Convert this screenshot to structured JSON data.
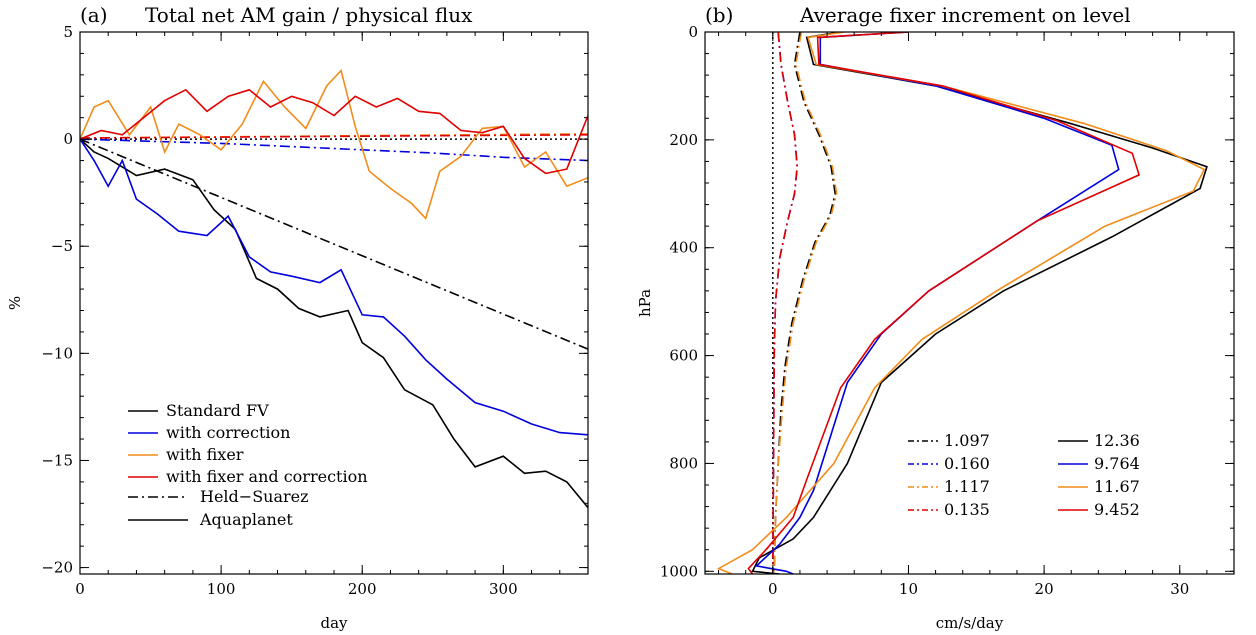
{
  "chart_data": [
    {
      "type": "line",
      "panel_label": "(a)",
      "title": "Total net AM gain / physical flux",
      "xlabel": "day",
      "ylabel": "%",
      "xlim": [
        0,
        360
      ],
      "ylim": [
        -20.3,
        5
      ],
      "xticks": [
        0,
        100,
        200,
        300
      ],
      "yticks": [
        5,
        0,
        -5,
        -10,
        -15,
        -20
      ],
      "xtick_labels": [
        "0",
        "100",
        "200",
        "300"
      ],
      "ytick_labels": [
        "5",
        "0",
        "−5",
        "−10",
        "−15",
        "−20"
      ],
      "zero_reference": "dotted",
      "legend_color": {
        "title": "",
        "placement": "bottom-left",
        "entries": [
          {
            "label": "Standard FV",
            "color": "#000000"
          },
          {
            "label": "with correction",
            "color": "#0000dd"
          },
          {
            "label": "with fixer",
            "color": "#f28c1a"
          },
          {
            "label": "with fixer and correction",
            "color": "#e00000"
          }
        ]
      },
      "legend_style": {
        "entries": [
          {
            "label": "Held−Suarez",
            "style": "dash-dot"
          },
          {
            "label": "Aquaplanet",
            "style": "solid"
          }
        ]
      },
      "series": [
        {
          "color": "#000000",
          "style": "dash-dot",
          "x": [
            0,
            360
          ],
          "y": [
            0,
            -9.8
          ]
        },
        {
          "color": "#0000dd",
          "style": "dash-dot",
          "x": [
            0,
            50,
            100,
            150,
            200,
            250,
            300,
            360
          ],
          "y": [
            0,
            -0.1,
            -0.2,
            -0.35,
            -0.5,
            -0.65,
            -0.85,
            -1.0
          ]
        },
        {
          "color": "#f28c1a",
          "style": "dash-dot",
          "x": [
            0,
            360
          ],
          "y": [
            0.05,
            0.25
          ]
        },
        {
          "color": "#e00000",
          "style": "dash-dot",
          "x": [
            0,
            360
          ],
          "y": [
            0.05,
            0.2
          ]
        },
        {
          "color": "#000000",
          "style": "solid",
          "x": [
            0,
            10,
            20,
            40,
            60,
            80,
            95,
            110,
            125,
            140,
            155,
            170,
            190,
            200,
            215,
            230,
            250,
            265,
            280,
            300,
            315,
            330,
            345,
            360
          ],
          "y": [
            0,
            -0.6,
            -0.9,
            -1.7,
            -1.4,
            -1.9,
            -3.3,
            -4.2,
            -6.5,
            -7.0,
            -7.9,
            -8.3,
            -8.0,
            -9.5,
            -10.2,
            -11.7,
            -12.4,
            -14.0,
            -15.3,
            -14.8,
            -15.6,
            -15.5,
            -16.0,
            -17.2
          ]
        },
        {
          "color": "#0000dd",
          "style": "solid",
          "x": [
            0,
            10,
            20,
            30,
            40,
            55,
            70,
            90,
            105,
            120,
            135,
            150,
            170,
            185,
            200,
            215,
            230,
            245,
            260,
            280,
            300,
            320,
            340,
            360
          ],
          "y": [
            0,
            -1.0,
            -2.2,
            -1.0,
            -2.8,
            -3.5,
            -4.3,
            -4.5,
            -3.6,
            -5.5,
            -6.2,
            -6.4,
            -6.7,
            -6.1,
            -8.2,
            -8.3,
            -9.2,
            -10.3,
            -11.2,
            -12.3,
            -12.7,
            -13.3,
            -13.7,
            -13.8
          ]
        },
        {
          "color": "#f28c1a",
          "style": "solid",
          "x": [
            0,
            10,
            20,
            35,
            50,
            60,
            70,
            85,
            100,
            115,
            130,
            145,
            160,
            175,
            185,
            195,
            205,
            220,
            235,
            245,
            255,
            270,
            285,
            300,
            315,
            330,
            345,
            360
          ],
          "y": [
            0,
            1.5,
            1.8,
            0.2,
            1.5,
            -0.6,
            0.7,
            0.2,
            -0.5,
            0.7,
            2.7,
            1.5,
            0.5,
            2.5,
            3.2,
            0.6,
            -1.5,
            -2.3,
            -3.0,
            -3.7,
            -1.5,
            -0.8,
            0.5,
            0.6,
            -1.3,
            -0.6,
            -2.2,
            -1.8
          ]
        },
        {
          "color": "#e00000",
          "style": "solid",
          "x": [
            0,
            15,
            30,
            45,
            60,
            75,
            90,
            105,
            120,
            135,
            150,
            165,
            180,
            195,
            210,
            225,
            240,
            255,
            270,
            285,
            300,
            315,
            330,
            345,
            360
          ],
          "y": [
            0,
            0.4,
            0.2,
            1.0,
            1.8,
            2.3,
            1.3,
            2.0,
            2.3,
            1.5,
            2.0,
            1.7,
            1.1,
            2.0,
            1.5,
            1.9,
            1.3,
            1.2,
            0.4,
            0.3,
            0.6,
            -0.9,
            -1.6,
            -1.4,
            1.1
          ]
        }
      ]
    },
    {
      "type": "line",
      "panel_label": "(b)",
      "title": "Average fixer increment on level",
      "xlabel": "cm/s/day",
      "ylabel": "hPa",
      "xlim": [
        -5,
        34
      ],
      "ylim": [
        1005,
        0
      ],
      "xticks": [
        0,
        10,
        20,
        30
      ],
      "yticks": [
        0,
        200,
        400,
        600,
        800,
        1000
      ],
      "xtick_labels": [
        "0",
        "10",
        "20",
        "30"
      ],
      "ytick_labels": [
        "0",
        "200",
        "400",
        "600",
        "800",
        "1000"
      ],
      "zero_reference": "dotted",
      "legend_placement": "bottom-right",
      "legend_left": [
        {
          "label": "1.097",
          "color": "#000000",
          "style": "dash-dot"
        },
        {
          "label": "0.160",
          "color": "#0000dd",
          "style": "dash-dot"
        },
        {
          "label": "1.117",
          "color": "#f28c1a",
          "style": "dash-dot"
        },
        {
          "label": "0.135",
          "color": "#e00000",
          "style": "dash-dot"
        }
      ],
      "legend_right": [
        {
          "label": "12.36",
          "color": "#000000",
          "style": "solid"
        },
        {
          "label": "9.764",
          "color": "#0000dd",
          "style": "solid"
        },
        {
          "label": "11.67",
          "color": "#f28c1a",
          "style": "solid"
        },
        {
          "label": "9.452",
          "color": "#e00000",
          "style": "solid"
        }
      ],
      "series": [
        {
          "color": "#000000",
          "style": "dash-dot",
          "x": [
            2.0,
            1.6,
            2.3,
            3.4,
            4.3,
            4.6,
            4.2,
            3.1,
            2.2,
            1.4,
            0.9,
            0.6,
            0.4,
            0.2,
            0.1
          ],
          "p": [
            0,
            60,
            130,
            190,
            250,
            300,
            340,
            390,
            460,
            540,
            620,
            700,
            800,
            900,
            1000
          ]
        },
        {
          "color": "#0000dd",
          "style": "dash-dot",
          "x": [
            0.4,
            0.6,
            1.1,
            1.6,
            1.8,
            1.6,
            1.1,
            0.5,
            0.2,
            0.1,
            0.0
          ],
          "p": [
            0,
            60,
            130,
            190,
            250,
            300,
            350,
            420,
            500,
            600,
            1000
          ]
        },
        {
          "color": "#f28c1a",
          "style": "dash-dot",
          "x": [
            2.1,
            1.7,
            2.4,
            3.5,
            4.4,
            4.7,
            4.3,
            3.2,
            2.3,
            1.5,
            1.0,
            0.7,
            0.4,
            0.2,
            0.1
          ],
          "p": [
            0,
            60,
            130,
            190,
            250,
            300,
            340,
            390,
            460,
            540,
            620,
            700,
            800,
            900,
            1000
          ]
        },
        {
          "color": "#e00000",
          "style": "dash-dot",
          "x": [
            0.4,
            0.6,
            1.1,
            1.6,
            1.8,
            1.6,
            1.1,
            0.5,
            0.2,
            0.1,
            0.0
          ],
          "p": [
            0,
            60,
            130,
            190,
            250,
            300,
            350,
            420,
            500,
            600,
            1000
          ]
        },
        {
          "color": "#000000",
          "style": "solid",
          "x": [
            5.0,
            2.5,
            3.0,
            12.0,
            22.0,
            28.0,
            32.0,
            31.5,
            25.0,
            17.0,
            12.0,
            8.0,
            5.5,
            3.0,
            1.5,
            -1.0,
            -1.5,
            0.5
          ],
          "p": [
            0,
            10,
            60,
            100,
            170,
            215,
            250,
            290,
            380,
            480,
            560,
            650,
            800,
            900,
            940,
            975,
            1000,
            1005
          ]
        },
        {
          "color": "#0000dd",
          "style": "solid",
          "x": [
            10.0,
            3.5,
            3.5,
            12.0,
            20.0,
            25.0,
            25.5,
            19.5,
            11.5,
            8.0,
            5.5,
            3.0,
            2.0,
            0.5,
            -1.2,
            1.0,
            1.5
          ],
          "p": [
            0,
            10,
            60,
            100,
            160,
            210,
            255,
            350,
            480,
            560,
            650,
            850,
            900,
            950,
            990,
            1000,
            1005
          ]
        },
        {
          "color": "#f28c1a",
          "style": "solid",
          "x": [
            5.3,
            2.6,
            3.2,
            12.5,
            23.0,
            29.0,
            31.8,
            31.0,
            24.5,
            16.5,
            11.0,
            7.5,
            4.5,
            1.0,
            -1.5,
            -4.0,
            -3.0
          ],
          "p": [
            0,
            10,
            60,
            100,
            170,
            220,
            255,
            295,
            360,
            480,
            570,
            660,
            800,
            900,
            960,
            995,
            1005
          ]
        },
        {
          "color": "#e00000",
          "style": "solid",
          "x": [
            10.0,
            3.3,
            3.4,
            12.5,
            21.0,
            26.5,
            27.0,
            19.5,
            11.5,
            7.5,
            5.0,
            2.5,
            1.5,
            -0.5,
            -1.8,
            -1.5
          ],
          "p": [
            0,
            10,
            60,
            100,
            165,
            225,
            265,
            350,
            480,
            570,
            660,
            830,
            900,
            960,
            995,
            1005
          ]
        }
      ]
    }
  ]
}
